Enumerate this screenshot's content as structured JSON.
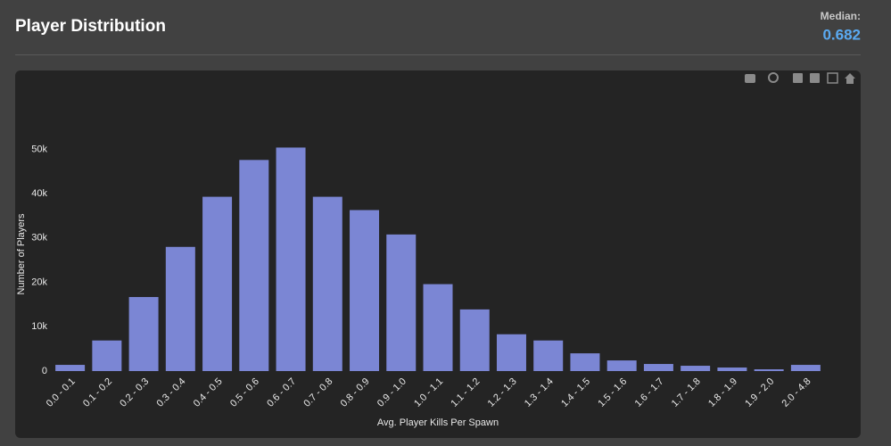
{
  "header": {
    "title": "Player Distribution",
    "median_label": "Median:",
    "median_value": "0.682"
  },
  "chart_data": {
    "type": "bar",
    "x_label": "Avg. Player Kills Per Spawn",
    "y_label": "Number of Players",
    "categories": [
      "0.0 - 0.1",
      "0.1 - 0.2",
      "0.2 - 0.3",
      "0.3 - 0.4",
      "0.4 - 0.5",
      "0.5 - 0.6",
      "0.6 - 0.7",
      "0.7 - 0.8",
      "0.8 - 0.9",
      "0.9 - 1.0",
      "1.0 - 1.1",
      "1.1 - 1.2",
      "1.2 - 1.3",
      "1.3 - 1.4",
      "1.4 - 1.5",
      "1.5 - 1.6",
      "1.6 - 1.7",
      "1.7 - 1.8",
      "1.8 - 1.9",
      "1.9 - 2.0",
      "2.0 - 4.8"
    ],
    "values": [
      1400,
      6900,
      16700,
      28000,
      39300,
      47600,
      50400,
      39300,
      36300,
      30800,
      19600,
      13900,
      8300,
      6900,
      4000,
      2400,
      1600,
      1200,
      800,
      400,
      1400
    ],
    "color": "#7b86d4",
    "ylim": [
      0,
      53500
    ],
    "yticks": [
      0,
      {
        "value": 10000,
        "label": "10k"
      },
      {
        "value": 20000,
        "label": "20k"
      },
      {
        "value": 30000,
        "label": "30k"
      },
      {
        "value": 40000,
        "label": "40k"
      },
      {
        "value": 50000,
        "label": "50k"
      }
    ],
    "grid": false
  }
}
